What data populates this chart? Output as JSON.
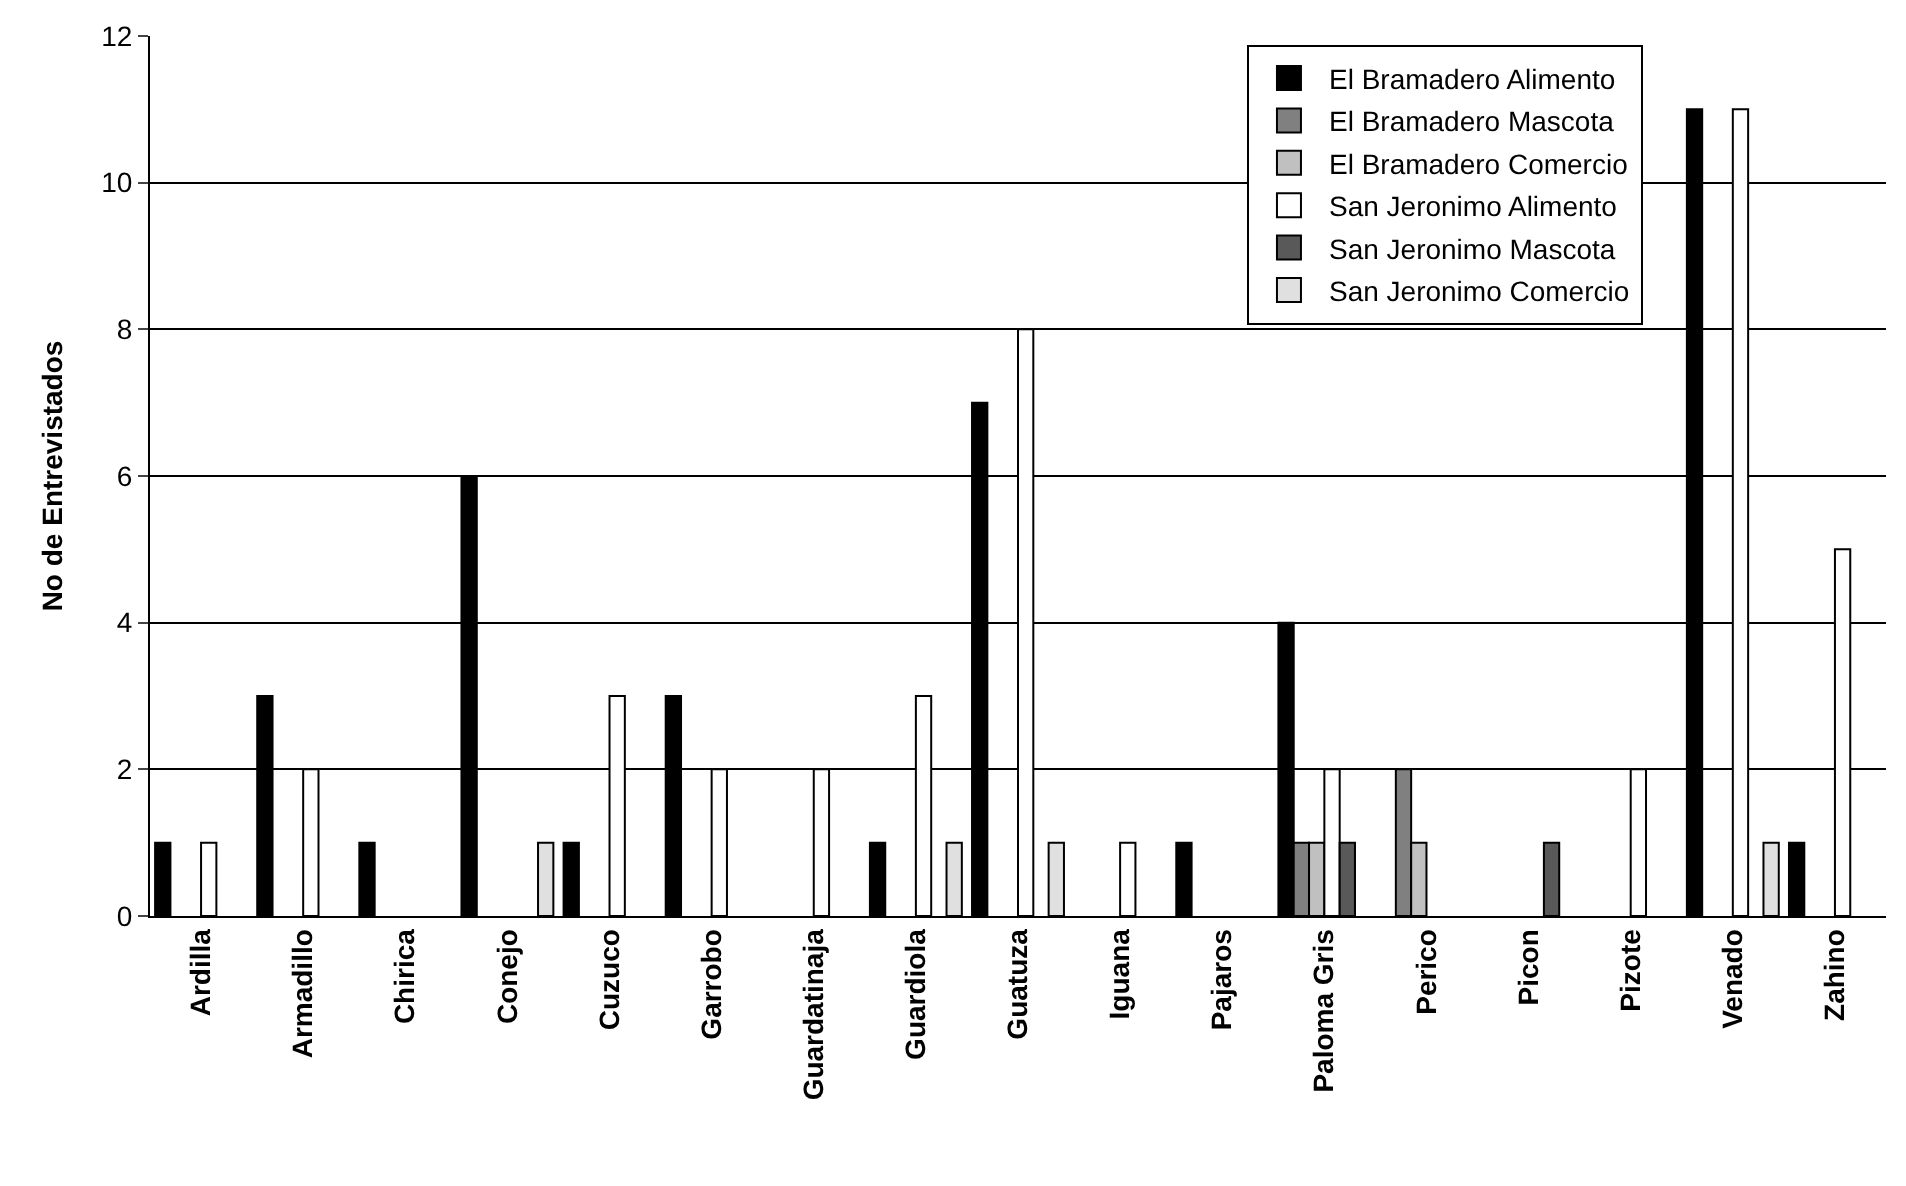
{
  "chart_data": {
    "type": "bar",
    "ylabel": "No de Entrevistados",
    "categories": [
      "Ardilla",
      "Armadillo",
      "Chirica",
      "Conejo",
      "Cuzuco",
      "Garrobo",
      "Guardatinaja",
      "Guardiola",
      "Guatuza",
      "Iguana",
      "Pajaros",
      "Paloma Gris",
      "Perico",
      "Picon",
      "Pizote",
      "Venado",
      "Zahino"
    ],
    "series": [
      {
        "name": "El Bramadero Alimento",
        "color": "#000000",
        "values": [
          1,
          3,
          1,
          6,
          1,
          3,
          null,
          1,
          7,
          null,
          1,
          4,
          null,
          null,
          null,
          11,
          1
        ]
      },
      {
        "name": "El Bramadero Mascota",
        "color": "#808080",
        "values": [
          null,
          null,
          null,
          null,
          null,
          null,
          null,
          null,
          null,
          null,
          null,
          1,
          2,
          null,
          null,
          null,
          null
        ]
      },
      {
        "name": "El Bramadero Comercio",
        "color": "#c0c0c0",
        "values": [
          null,
          null,
          null,
          null,
          null,
          null,
          null,
          null,
          null,
          null,
          null,
          1,
          1,
          null,
          null,
          null,
          null
        ]
      },
      {
        "name": "San Jeronimo Alimento",
        "color": "#ffffff",
        "values": [
          1,
          2,
          null,
          null,
          3,
          2,
          2,
          3,
          8,
          1,
          null,
          2,
          null,
          null,
          2,
          11,
          5
        ]
      },
      {
        "name": "San Jeronimo Mascota",
        "color": "#595959",
        "values": [
          null,
          null,
          null,
          null,
          null,
          null,
          null,
          null,
          null,
          null,
          null,
          1,
          null,
          1,
          null,
          null,
          null
        ]
      },
      {
        "name": "San Jeronimo Comercio",
        "color": "#e0e0e0",
        "values": [
          null,
          null,
          null,
          1,
          null,
          null,
          null,
          1,
          1,
          null,
          null,
          null,
          null,
          null,
          null,
          1,
          null
        ]
      }
    ],
    "ylim": [
      0,
      12
    ],
    "yticks": [
      0,
      2,
      4,
      6,
      8,
      10,
      12
    ],
    "grid": "y",
    "legend": "top right"
  }
}
